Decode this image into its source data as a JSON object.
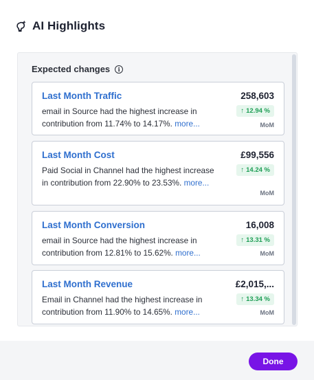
{
  "header": {
    "title": "AI Highlights",
    "icon": "sparkle-bulb-icon"
  },
  "section": {
    "title": "Expected changes",
    "info_icon": "info-icon"
  },
  "cards": [
    {
      "name": "Last Month Traffic",
      "value": "258,603",
      "desc": "email in Source had the highest increase in contribution from 11.74% to 14.17%. ",
      "more": "more...",
      "change": "12.94 %",
      "period": "MoM"
    },
    {
      "name": "Last Month Cost",
      "value": "£99,556",
      "desc": "Paid Social in Channel had the highest increase in contribution from 22.90% to 23.53%. ",
      "more": "more...",
      "change": "14.24 %",
      "period": "MoM"
    },
    {
      "name": "Last Month Conversion",
      "value": "16,008",
      "desc": "email in Source had the highest increase in contribution from 12.81% to 15.62%. ",
      "more": "more...",
      "change": "13.31 %",
      "period": "MoM"
    },
    {
      "name": "Last Month Revenue",
      "value": "£2,015,...",
      "desc": "Email in Channel had the highest increase in contribution from 11.90% to 14.65%. ",
      "more": "more...",
      "change": "13.34 %",
      "period": "MoM"
    }
  ],
  "footer": {
    "done_label": "Done"
  },
  "colors": {
    "accent": "#7814e6",
    "link": "#2f6fce",
    "positive": "#1e9e55",
    "positive_bg": "#e6f6ed"
  }
}
